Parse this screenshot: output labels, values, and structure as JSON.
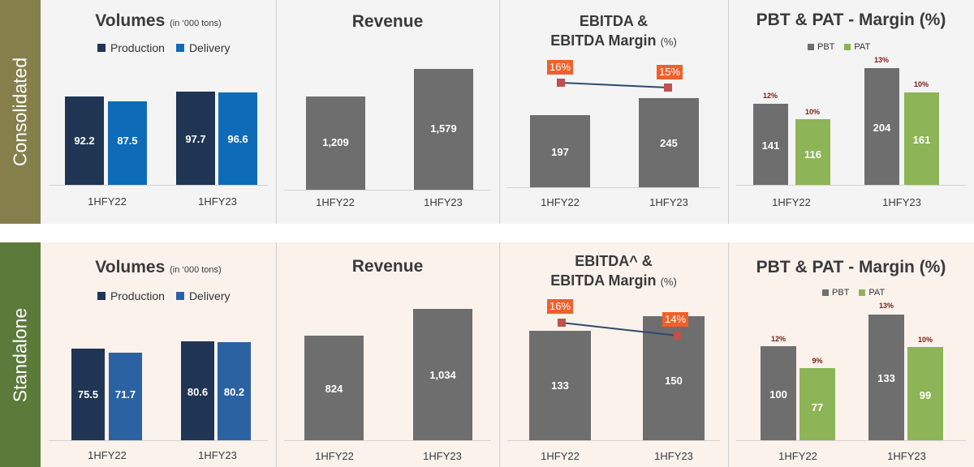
{
  "sections": [
    {
      "label": "Consolidated",
      "volumes": {
        "title": "Volumes",
        "unit": "(in ‘000 tons)",
        "legend": [
          "Production",
          "Delivery"
        ],
        "categories": [
          "1HFY22",
          "1HFY23"
        ],
        "production": [
          "92.2",
          "97.7"
        ],
        "delivery": [
          "87.5",
          "96.6"
        ]
      },
      "revenue": {
        "title": "Revenue",
        "categories": [
          "1HFY22",
          "1HFY23"
        ],
        "values": [
          "1,209",
          "1,579"
        ]
      },
      "ebitda": {
        "title1": "EBITDA &",
        "title2": "EBITDA Margin",
        "title_unit": "(%)",
        "categories": [
          "1HFY22",
          "1HFY23"
        ],
        "values": [
          "197",
          "245"
        ],
        "margins": [
          "16%",
          "15%"
        ]
      },
      "pbt_pat": {
        "title": "PBT & PAT - Margin (%)",
        "legend": [
          "PBT",
          "PAT"
        ],
        "categories": [
          "1HFY22",
          "1HFY23"
        ],
        "pbt": [
          "141",
          "204"
        ],
        "pat": [
          "116",
          "161"
        ],
        "pbt_margin": [
          "12%",
          "13%"
        ],
        "pat_margin": [
          "10%",
          "10%"
        ]
      }
    },
    {
      "label": "Standalone",
      "volumes": {
        "title": "Volumes",
        "unit": "(in ‘000 tons)",
        "legend": [
          "Production",
          "Delivery"
        ],
        "categories": [
          "1HFY22",
          "1HFY23"
        ],
        "production": [
          "75.5",
          "80.6"
        ],
        "delivery": [
          "71.7",
          "80.2"
        ]
      },
      "revenue": {
        "title": "Revenue",
        "categories": [
          "1HFY22",
          "1HFY23"
        ],
        "values": [
          "824",
          "1,034"
        ]
      },
      "ebitda": {
        "title1": "EBITDA^ &",
        "title2": "EBITDA Margin",
        "title_unit": "(%)",
        "categories": [
          "1HFY22",
          "1HFY23"
        ],
        "values": [
          "133",
          "150"
        ],
        "margins": [
          "16%",
          "14%"
        ]
      },
      "pbt_pat": {
        "title": "PBT & PAT - Margin (%)",
        "legend": [
          "PBT",
          "PAT"
        ],
        "categories": [
          "1HFY22",
          "1HFY23"
        ],
        "pbt": [
          "100",
          "133"
        ],
        "pat": [
          "77",
          "99"
        ],
        "pbt_margin": [
          "12%",
          "13%"
        ],
        "pat_margin": [
          "9%",
          "10%"
        ]
      }
    }
  ],
  "colors": {
    "production": "#1f3553",
    "delivery_consolidated": "#0e6bb8",
    "delivery_standalone": "#2b62a2",
    "grey_bar": "#6e6e6e",
    "pat_bar": "#8db456",
    "margin_badge": "#f0602a",
    "margin_marker": "#c0504d",
    "margin_line": "#2e4a6e",
    "consolidated_band": "#857f4c",
    "standalone_band": "#5c7a3a",
    "consolidated_bg": "#f4f4f4",
    "standalone_bg": "#fbf2ec"
  },
  "chart_data": [
    {
      "section": "Consolidated",
      "type": "bar",
      "title": "Volumes (in ‘000 tons)",
      "categories": [
        "1HFY22",
        "1HFY23"
      ],
      "series": [
        {
          "name": "Production",
          "values": [
            92.2,
            97.7
          ]
        },
        {
          "name": "Delivery",
          "values": [
            87.5,
            96.6
          ]
        }
      ]
    },
    {
      "section": "Consolidated",
      "type": "bar",
      "title": "Revenue",
      "categories": [
        "1HFY22",
        "1HFY23"
      ],
      "values": [
        1209,
        1579
      ]
    },
    {
      "section": "Consolidated",
      "type": "bar",
      "title": "EBITDA & EBITDA Margin (%)",
      "categories": [
        "1HFY22",
        "1HFY23"
      ],
      "values": [
        197,
        245
      ],
      "line_values": [
        16,
        15
      ]
    },
    {
      "section": "Consolidated",
      "type": "bar",
      "title": "PBT & PAT - Margin (%)",
      "categories": [
        "1HFY22",
        "1HFY23"
      ],
      "series": [
        {
          "name": "PBT",
          "values": [
            141,
            204
          ],
          "margins": [
            12,
            13
          ]
        },
        {
          "name": "PAT",
          "values": [
            116,
            161
          ],
          "margins": [
            10,
            10
          ]
        }
      ]
    },
    {
      "section": "Standalone",
      "type": "bar",
      "title": "Volumes (in ‘000 tons)",
      "categories": [
        "1HFY22",
        "1HFY23"
      ],
      "series": [
        {
          "name": "Production",
          "values": [
            75.5,
            80.6
          ]
        },
        {
          "name": "Delivery",
          "values": [
            71.7,
            80.2
          ]
        }
      ]
    },
    {
      "section": "Standalone",
      "type": "bar",
      "title": "Revenue",
      "categories": [
        "1HFY22",
        "1HFY23"
      ],
      "values": [
        824,
        1034
      ]
    },
    {
      "section": "Standalone",
      "type": "bar",
      "title": "EBITDA^ & EBITDA Margin (%)",
      "categories": [
        "1HFY22",
        "1HFY23"
      ],
      "values": [
        133,
        150
      ],
      "line_values": [
        16,
        14
      ]
    },
    {
      "section": "Standalone",
      "type": "bar",
      "title": "PBT & PAT - Margin (%)",
      "categories": [
        "1HFY22",
        "1HFY23"
      ],
      "series": [
        {
          "name": "PBT",
          "values": [
            100,
            133
          ],
          "margins": [
            12,
            13
          ]
        },
        {
          "name": "PAT",
          "values": [
            77,
            99
          ],
          "margins": [
            9,
            10
          ]
        }
      ]
    }
  ]
}
